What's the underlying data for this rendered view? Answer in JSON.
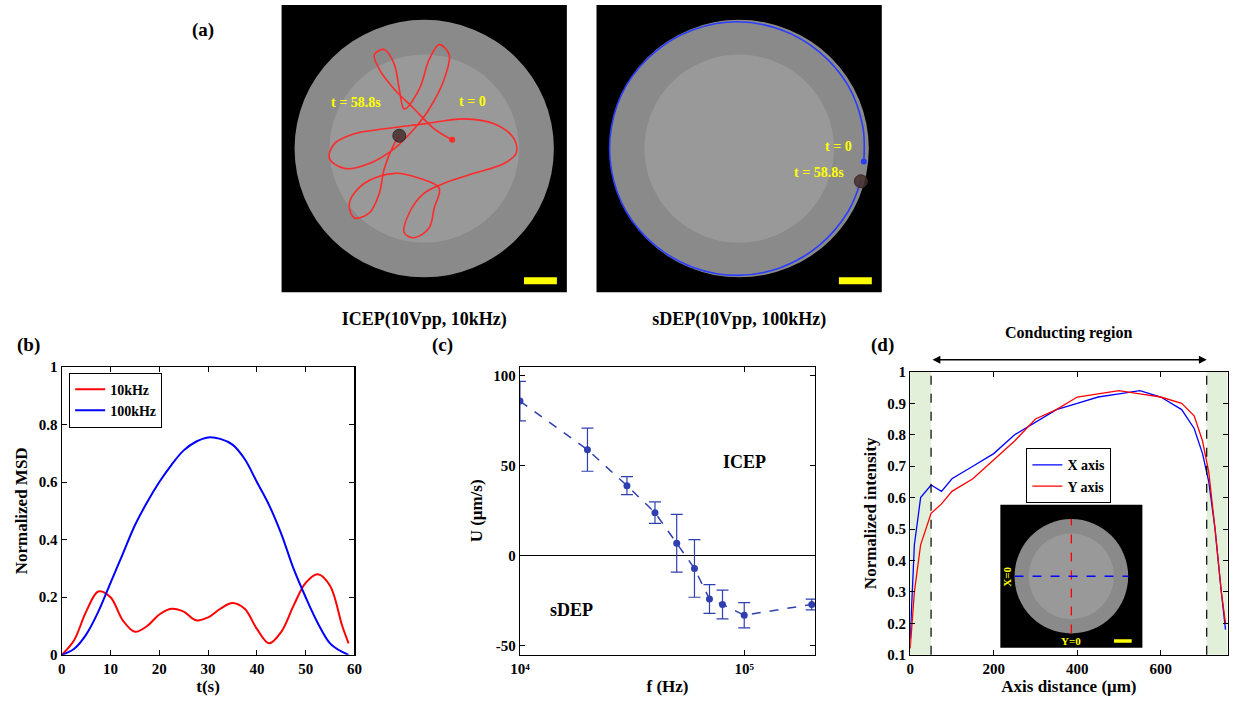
{
  "chart_data": [
    {
      "type": "trajectory",
      "panel": "(a)",
      "title": "ICEP(10Vpp, 10kHz)",
      "tick_labels": false,
      "xlim": [
        -143,
        143
      ],
      "ylim": [
        -145,
        145
      ],
      "color": "#ff2a2a",
      "x": [
        28,
        10,
        -10,
        -30,
        -45,
        -50,
        -40,
        -30,
        -25,
        -20,
        -5,
        5,
        15,
        25,
        20,
        5,
        -10,
        -30,
        -55,
        -80,
        -95,
        -90,
        -70,
        -40,
        0,
        40,
        70,
        90,
        92,
        80,
        50,
        20,
        0,
        -15,
        -20,
        -10,
        5,
        10,
        15,
        -5,
        -30,
        -60,
        -75,
        -70,
        -55,
        -45,
        -40,
        -30,
        -25
      ],
      "y": [
        9,
        20,
        40,
        60,
        80,
        95,
        100,
        85,
        60,
        40,
        60,
        90,
        105,
        95,
        70,
        40,
        20,
        0,
        -15,
        -20,
        -10,
        5,
        15,
        20,
        25,
        30,
        25,
        10,
        -5,
        -15,
        -25,
        -35,
        -45,
        -65,
        -85,
        -90,
        -80,
        -60,
        -40,
        -30,
        -25,
        -35,
        -55,
        -70,
        -65,
        -45,
        -20,
        5,
        13
      ],
      "annotations": [
        {
          "text": "t = 58.8s",
          "x": -68,
          "y": 47
        },
        {
          "text": "t = 0",
          "x": 48,
          "y": 48
        }
      ]
    },
    {
      "type": "trajectory",
      "title": "sDEP(10Vpp, 100kHz)",
      "tick_labels": false,
      "xlim": [
        -143,
        143
      ],
      "ylim": [
        -145,
        145
      ],
      "color": "#2a3cff",
      "x": [
        125,
        124,
        109,
        80,
        42,
        -2,
        -46,
        -84,
        -113,
        -128,
        -128,
        -113,
        -84,
        -46,
        -2,
        42,
        80,
        109,
        122
      ],
      "y": [
        -13,
        22,
        64,
        98,
        120,
        128,
        120,
        98,
        64,
        22,
        -22,
        -64,
        -98,
        -120,
        -128,
        -120,
        -98,
        -64,
        -33
      ],
      "annotations": [
        {
          "text": "t = 0",
          "x": 100,
          "y": 2
        },
        {
          "text": "t = 58.8s",
          "x": 80,
          "y": -24
        }
      ]
    },
    {
      "type": "line",
      "panel": "(b)",
      "xlabel": "t(s)",
      "ylabel": "Normalized MSD",
      "xlim": [
        0,
        60
      ],
      "xticks": [
        0,
        10,
        20,
        30,
        40,
        50,
        60
      ],
      "ylim": [
        0,
        1
      ],
      "yticks": [
        0,
        0.2,
        0.4,
        0.6,
        0.8,
        1
      ],
      "legend": "upper left",
      "x": [
        0,
        2.5,
        5,
        7.5,
        10,
        12.5,
        15,
        17.5,
        20,
        22.5,
        25,
        27.5,
        30,
        32.5,
        35,
        37.5,
        40,
        42.5,
        45,
        47.5,
        50,
        52.5,
        55,
        57.5,
        58.8
      ],
      "series": [
        {
          "name": "10kHz",
          "color": "#ff0000",
          "values": [
            0,
            0.05,
            0.15,
            0.22,
            0.2,
            0.12,
            0.08,
            0.1,
            0.14,
            0.16,
            0.15,
            0.12,
            0.13,
            0.16,
            0.18,
            0.16,
            0.09,
            0.04,
            0.08,
            0.17,
            0.25,
            0.28,
            0.24,
            0.1,
            0.04
          ]
        },
        {
          "name": "100kHz",
          "color": "#0000ff",
          "values": [
            0,
            0.02,
            0.07,
            0.15,
            0.25,
            0.35,
            0.45,
            0.53,
            0.6,
            0.66,
            0.71,
            0.74,
            0.755,
            0.75,
            0.73,
            0.68,
            0.6,
            0.52,
            0.42,
            0.3,
            0.2,
            0.11,
            0.04,
            0.01,
            0
          ]
        }
      ]
    },
    {
      "type": "scatter",
      "panel": "(c)",
      "xlabel": "f (Hz)",
      "ylabel": "U (μm/s)",
      "log": "x",
      "xlim": [
        10000,
        207000
      ],
      "xticks": [
        {
          "value": 10000,
          "label": "10⁴"
        },
        {
          "value": 100000,
          "label": "10⁵"
        }
      ],
      "ylim": [
        -55,
        105
      ],
      "yticks": [
        -50,
        0,
        50,
        100
      ],
      "color": "#2f3fb0",
      "marker": "circle",
      "line_style": "dashed",
      "x": [
        10000,
        20000,
        30000,
        40000,
        50000,
        60000,
        70000,
        80000,
        100000,
        200000
      ],
      "values": [
        86,
        59,
        39,
        24,
        7,
        -7,
        -24,
        -27,
        -33,
        -27
      ],
      "errors": [
        11,
        12,
        5,
        6,
        16,
        16,
        8,
        8,
        7,
        3
      ],
      "annotations": [
        {
          "text": "ICEP",
          "x": 100000,
          "y": 52
        },
        {
          "text": "sDEP",
          "x": 17000,
          "y": -30
        }
      ]
    },
    {
      "type": "line",
      "panel": "(d)",
      "xlabel": "Axis distance (μm)",
      "ylabel": "Normalized intensity",
      "xlim": [
        0,
        760
      ],
      "xticks": [
        0,
        200,
        400,
        600
      ],
      "ylim": [
        0.1,
        1
      ],
      "yticks": [
        0.1,
        0.2,
        0.3,
        0.4,
        0.5,
        0.6,
        0.7,
        0.8,
        0.9,
        1
      ],
      "legend": "center",
      "region": {
        "label": "Conducting region",
        "x": [
          50,
          710
        ]
      },
      "inset_labels": [
        "X=0",
        "Y=0"
      ],
      "x": [
        0,
        10,
        25,
        50,
        75,
        100,
        150,
        200,
        250,
        300,
        350,
        400,
        450,
        500,
        550,
        600,
        650,
        680,
        700,
        715,
        730,
        745,
        755
      ],
      "series": [
        {
          "name": "X axis",
          "color": "#0000ff",
          "values": [
            0.15,
            0.45,
            0.6,
            0.64,
            0.62,
            0.66,
            0.7,
            0.74,
            0.8,
            0.84,
            0.88,
            0.9,
            0.92,
            0.93,
            0.94,
            0.92,
            0.88,
            0.82,
            0.74,
            0.65,
            0.5,
            0.3,
            0.18
          ]
        },
        {
          "name": "Y axis",
          "color": "#ff0000",
          "values": [
            0.12,
            0.3,
            0.45,
            0.55,
            0.58,
            0.62,
            0.66,
            0.72,
            0.78,
            0.85,
            0.88,
            0.92,
            0.93,
            0.94,
            0.93,
            0.92,
            0.9,
            0.86,
            0.78,
            0.68,
            0.5,
            0.3,
            0.2
          ]
        }
      ]
    }
  ]
}
